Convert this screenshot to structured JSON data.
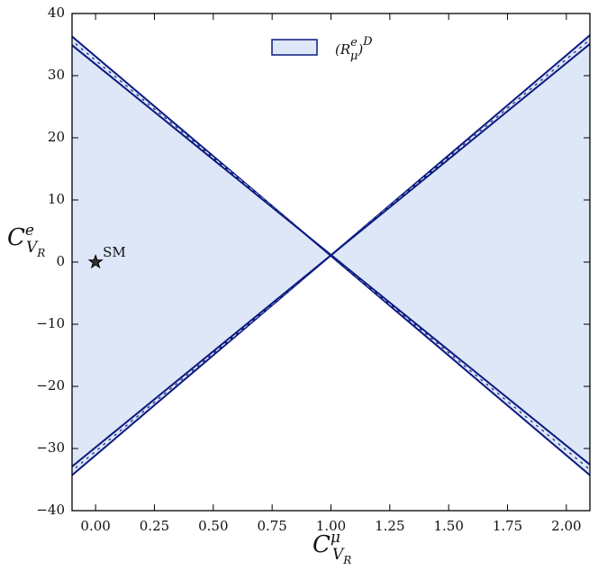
{
  "chart_data": {
    "type": "line",
    "xlabel": {
      "main": "C",
      "sub": "V",
      "subsub": "R",
      "sup": "μ"
    },
    "ylabel": {
      "main": "C",
      "sub": "V",
      "subsub": "R",
      "sup": "e"
    },
    "xlim": [
      -0.1,
      2.1
    ],
    "ylim": [
      -40,
      40
    ],
    "xticks": [
      {
        "value": 0,
        "label": "0.00"
      },
      {
        "value": 0.25,
        "label": "0.25"
      },
      {
        "value": 0.5,
        "label": "0.50"
      },
      {
        "value": 0.75,
        "label": "0.75"
      },
      {
        "value": 1,
        "label": "1.00"
      },
      {
        "value": 1.25,
        "label": "1.25"
      },
      {
        "value": 1.5,
        "label": "1.50"
      },
      {
        "value": 1.75,
        "label": "1.75"
      },
      {
        "value": 2,
        "label": "2.00"
      }
    ],
    "yticks": [
      -40,
      -30,
      -20,
      -10,
      0,
      10,
      20,
      30,
      40
    ],
    "legend": {
      "open": "(R",
      "sup": "e",
      "sub": "μ",
      "close": ")",
      "outer_sup": "D",
      "position": "upper center"
    },
    "fill_color": "#dde7f7",
    "edge_color": "#0b1a80",
    "regions": [
      {
        "x": [
          -0.1,
          1,
          -0.1
        ],
        "y": [
          36.3,
          1,
          -34.3
        ]
      },
      {
        "x": [
          2.1,
          1,
          2.1
        ],
        "y": [
          36.5,
          1,
          -34.3
        ]
      }
    ],
    "series": [
      {
        "x": [
          -0.1,
          2.1
        ],
        "y": [
          36.3,
          -34.3
        ],
        "dash": false
      },
      {
        "x": [
          -0.1,
          2.1
        ],
        "y": [
          35.6,
          -33.4
        ],
        "dash": true
      },
      {
        "x": [
          -0.1,
          2.1
        ],
        "y": [
          34.9,
          -32.6
        ],
        "dash": false
      },
      {
        "x": [
          -0.1,
          2.1
        ],
        "y": [
          -34.3,
          36.5
        ],
        "dash": false
      },
      {
        "x": [
          -0.1,
          2.1
        ],
        "y": [
          -33.6,
          35.8
        ],
        "dash": true
      },
      {
        "x": [
          -0.1,
          2.1
        ],
        "y": [
          -32.9,
          35.1
        ],
        "dash": false
      }
    ],
    "annotations": [
      {
        "text": "SM",
        "x": 0,
        "y": 0
      }
    ]
  }
}
